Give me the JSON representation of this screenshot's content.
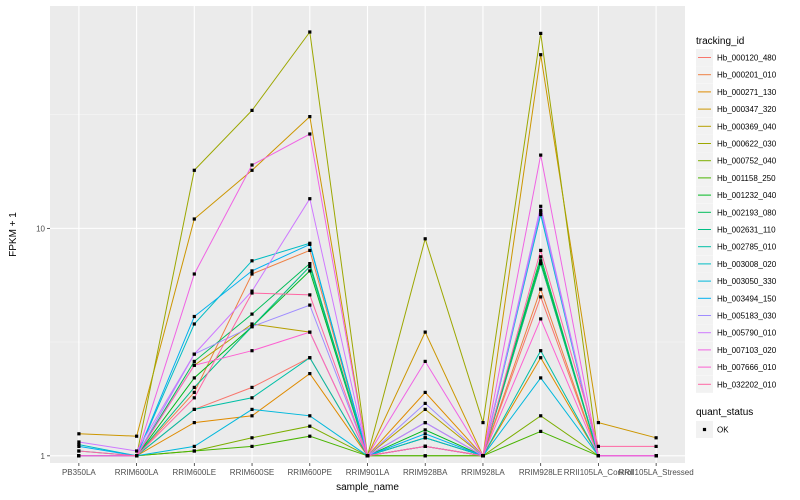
{
  "chart_data": {
    "type": "line",
    "xlabel": "sample_name",
    "ylabel": "FPKM + 1",
    "y_scale": "log10",
    "ylim": [
      0.93,
      95
    ],
    "y_ticks": [
      1,
      10
    ],
    "y_tick_labels": [
      "1",
      "10"
    ],
    "grid": true,
    "legend_position": "right",
    "legend_title": "tracking_id",
    "legend2_title": "quant_status",
    "legend2_entries": [
      "OK"
    ],
    "categories": [
      "PB350LA",
      "RRIM600LA",
      "RRIM600LE",
      "RRIM600SE",
      "RRIM600PE",
      "RRIM901LA",
      "RRIM928BA",
      "RRIM928LA",
      "RRIM928LE",
      "RRII105LA_Control",
      "RRII105LA_Stressed"
    ],
    "series": [
      {
        "name": "Hb_000120_480",
        "color": "#F8766D",
        "values": [
          1.0,
          1.0,
          1.6,
          2.0,
          2.7,
          1.0,
          1.2,
          1.0,
          5.0,
          1.0,
          1.0
        ]
      },
      {
        "name": "Hb_000201_010",
        "color": "#EE8044",
        "values": [
          1.0,
          1.0,
          1.9,
          6.3,
          8.0,
          1.0,
          1.1,
          1.0,
          5.4,
          1.0,
          1.0
        ]
      },
      {
        "name": "Hb_000271_130",
        "color": "#DF8B00",
        "values": [
          1.0,
          1.0,
          1.4,
          1.5,
          2.3,
          1.0,
          1.9,
          1.0,
          2.7,
          1.0,
          1.0
        ]
      },
      {
        "name": "Hb_000347_320",
        "color": "#CC9600",
        "values": [
          1.25,
          1.22,
          11.0,
          18.0,
          31.0,
          1.0,
          3.5,
          1.0,
          58.0,
          1.4,
          1.2
        ]
      },
      {
        "name": "Hb_000369_040",
        "color": "#B69F00",
        "values": [
          1.0,
          1.0,
          2.5,
          3.8,
          3.5,
          1.0,
          1.6,
          1.0,
          7.0,
          1.0,
          1.0
        ]
      },
      {
        "name": "Hb_000622_030",
        "color": "#9CA700",
        "values": [
          1.0,
          1.0,
          18.0,
          33.0,
          73.0,
          1.0,
          9.0,
          1.4,
          72.0,
          1.0,
          1.0
        ]
      },
      {
        "name": "Hb_000752_040",
        "color": "#7CAE00",
        "values": [
          1.0,
          1.0,
          1.05,
          1.2,
          1.35,
          1.0,
          1.0,
          1.0,
          1.5,
          1.0,
          1.0
        ]
      },
      {
        "name": "Hb_001158_250",
        "color": "#49B400",
        "values": [
          1.0,
          1.0,
          1.05,
          1.1,
          1.22,
          1.0,
          1.0,
          1.0,
          1.28,
          1.0,
          1.0
        ]
      },
      {
        "name": "Hb_001232_040",
        "color": "#00B81F",
        "values": [
          1.0,
          1.0,
          2.2,
          3.7,
          6.5,
          1.0,
          1.3,
          1.0,
          7.2,
          1.0,
          1.0
        ]
      },
      {
        "name": "Hb_002193_080",
        "color": "#00BC59",
        "values": [
          1.0,
          1.0,
          2.6,
          4.2,
          7.0,
          1.0,
          1.2,
          1.0,
          7.5,
          1.0,
          1.0
        ]
      },
      {
        "name": "Hb_002631_110",
        "color": "#00BE84",
        "values": [
          1.0,
          1.0,
          2.0,
          3.7,
          6.8,
          1.0,
          1.1,
          1.0,
          7.0,
          1.0,
          1.0
        ]
      },
      {
        "name": "Hb_002785_010",
        "color": "#00BFA6",
        "values": [
          1.05,
          1.0,
          1.6,
          1.8,
          2.7,
          1.0,
          1.4,
          1.0,
          2.9,
          1.0,
          1.0
        ]
      },
      {
        "name": "Hb_003008_020",
        "color": "#00BDC4",
        "values": [
          1.12,
          1.0,
          3.8,
          7.2,
          8.6,
          1.0,
          1.2,
          1.0,
          11.5,
          1.0,
          1.0
        ]
      },
      {
        "name": "Hb_003050_330",
        "color": "#00B8DC",
        "values": [
          1.0,
          1.0,
          1.1,
          1.6,
          1.5,
          1.0,
          1.1,
          1.0,
          2.2,
          1.0,
          1.0
        ]
      },
      {
        "name": "Hb_003494_150",
        "color": "#00B0F0",
        "values": [
          1.1,
          1.0,
          4.1,
          6.5,
          8.5,
          1.0,
          1.25,
          1.0,
          11.8,
          1.0,
          1.0
        ]
      },
      {
        "name": "Hb_005183_030",
        "color": "#9F8CFF",
        "values": [
          1.0,
          1.0,
          2.8,
          3.7,
          4.6,
          1.0,
          1.7,
          1.0,
          12.0,
          1.0,
          1.0
        ]
      },
      {
        "name": "Hb_005790_010",
        "color": "#CE79FF",
        "values": [
          1.15,
          1.05,
          2.8,
          5.3,
          13.5,
          1.0,
          1.4,
          1.0,
          12.5,
          1.0,
          1.0
        ]
      },
      {
        "name": "Hb_007103_020",
        "color": "#F064E4",
        "values": [
          1.0,
          1.0,
          6.3,
          19.0,
          26.0,
          1.0,
          2.6,
          1.0,
          21.0,
          1.0,
          1.0
        ]
      },
      {
        "name": "Hb_007666_010",
        "color": "#FD61D1",
        "values": [
          1.0,
          1.0,
          2.5,
          2.9,
          3.5,
          1.0,
          1.1,
          1.0,
          4.0,
          1.0,
          1.0
        ]
      },
      {
        "name": "Hb_032202_010",
        "color": "#FF67A4",
        "values": [
          1.05,
          1.0,
          1.8,
          5.2,
          5.1,
          1.0,
          1.1,
          1.0,
          8.0,
          1.1,
          1.1
        ]
      }
    ]
  }
}
